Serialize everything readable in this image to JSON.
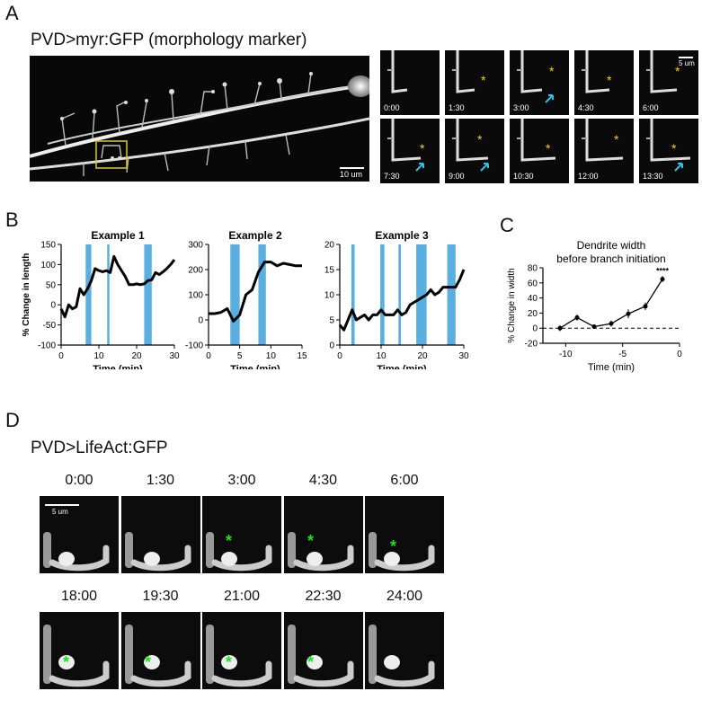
{
  "panels": {
    "A": {
      "label": "A",
      "title": "PVD>myr:GFP (morphology marker)",
      "scale_main": "10 um",
      "scale_tile": "5 um",
      "timepoints": [
        "0:00",
        "1:30",
        "3:00",
        "4:30",
        "6:00",
        "7:30",
        "9:00",
        "10:30",
        "12:00",
        "13:30"
      ]
    },
    "B": {
      "label": "B"
    },
    "C": {
      "label": "C"
    },
    "D": {
      "label": "D",
      "title": "PVD>LifeAct:GFP",
      "scale": "5 um",
      "timepoints_row1": [
        "0:00",
        "1:30",
        "3:00",
        "4:30",
        "6:00"
      ],
      "timepoints_row2": [
        "18:00",
        "19:30",
        "21:00",
        "22:30",
        "24:00"
      ]
    }
  },
  "colors": {
    "bar": "#5aaee0",
    "line": "#000000",
    "star_yellow": "#f5d020",
    "star_green": "#22dd22",
    "arrow_cyan": "#29c4e6",
    "box_yellow": "#d8c830"
  },
  "chart_data": [
    {
      "type": "line",
      "title": "Example 1",
      "xlabel": "Time (min)",
      "ylabel": "% Change in length",
      "xlim": [
        0,
        30
      ],
      "ylim": [
        -100,
        150
      ],
      "xticks": [
        0,
        10,
        20,
        30
      ],
      "yticks": [
        -100,
        -50,
        0,
        50,
        100,
        150
      ],
      "x": [
        0,
        1,
        2,
        3,
        4,
        5,
        6,
        7,
        8,
        9,
        10,
        11,
        12,
        13,
        14,
        15,
        16,
        17,
        18,
        19,
        20,
        21,
        22,
        23,
        24,
        25,
        26,
        27,
        28,
        29,
        30
      ],
      "y": [
        -10,
        -30,
        0,
        -10,
        -5,
        40,
        25,
        40,
        60,
        90,
        85,
        82,
        85,
        80,
        120,
        100,
        85,
        70,
        50,
        50,
        52,
        50,
        52,
        60,
        62,
        80,
        75,
        82,
        90,
        100,
        112
      ],
      "bars": [
        [
          6.5,
          8
        ],
        [
          12.2,
          12.8
        ],
        [
          22,
          24
        ]
      ]
    },
    {
      "type": "line",
      "title": "Example 2",
      "xlabel": "Time (min)",
      "ylabel": "% Change in length",
      "xlim": [
        0,
        15
      ],
      "ylim": [
        -100,
        300
      ],
      "xticks": [
        0,
        5,
        10,
        15
      ],
      "yticks": [
        -100,
        0,
        100,
        200,
        300
      ],
      "x": [
        0,
        1,
        2,
        3,
        4,
        5,
        6,
        7,
        8,
        9,
        10,
        11,
        12,
        13,
        14,
        15
      ],
      "y": [
        25,
        25,
        30,
        45,
        -5,
        20,
        100,
        120,
        190,
        230,
        230,
        215,
        225,
        220,
        215,
        215
      ],
      "bars": [
        [
          3.5,
          5
        ],
        [
          8,
          9.2
        ]
      ]
    },
    {
      "type": "line",
      "title": "Example 3",
      "xlabel": "Time (min)",
      "ylabel": "",
      "xlim": [
        0,
        30
      ],
      "ylim": [
        0,
        20
      ],
      "xticks": [
        0,
        10,
        20,
        30
      ],
      "yticks": [
        0,
        5,
        10,
        15,
        20
      ],
      "x": [
        0,
        1,
        2,
        3,
        4,
        5,
        6,
        7,
        8,
        9,
        10,
        11,
        12,
        13,
        14,
        15,
        16,
        17,
        18,
        19,
        20,
        21,
        22,
        23,
        24,
        25,
        26,
        27,
        28,
        29,
        30
      ],
      "y": [
        4,
        3,
        5,
        7,
        5,
        5.5,
        6,
        5,
        6,
        6,
        7,
        6,
        6,
        6,
        7,
        6,
        6.5,
        8,
        8.5,
        9,
        9.5,
        10,
        11,
        10,
        10.5,
        11.5,
        11.5,
        11.5,
        11.5,
        13,
        15
      ],
      "bars": [
        [
          2.8,
          3.6
        ],
        [
          9.8,
          10.8
        ],
        [
          14.2,
          14.8
        ],
        [
          18.5,
          21
        ],
        [
          26,
          28
        ]
      ]
    },
    {
      "type": "line",
      "title": "Dendrite width\nbefore branch initiation",
      "xlabel": "Time (min)",
      "ylabel": "% Change in width",
      "xlim": [
        -12,
        0
      ],
      "ylim": [
        -20,
        80
      ],
      "xticks": [
        -10,
        -5,
        0
      ],
      "yticks": [
        -20,
        0,
        20,
        40,
        60,
        80
      ],
      "x": [
        -10.5,
        -9,
        -7.5,
        -6,
        -4.5,
        -3,
        -1.5
      ],
      "y": [
        0,
        14,
        2,
        6,
        19,
        29,
        65
      ],
      "err": [
        4,
        4,
        3,
        4,
        6,
        5,
        4
      ],
      "annotation": "****"
    }
  ]
}
